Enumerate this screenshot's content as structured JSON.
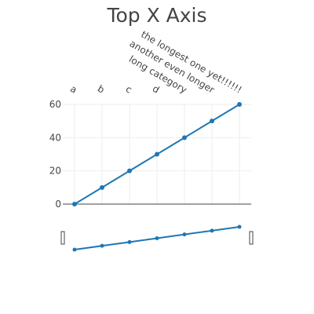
{
  "chart_data": {
    "type": "line",
    "title": "Top X Axis",
    "xlabel": "",
    "ylabel": "",
    "x_axis_position": "top",
    "categories": [
      "a",
      "b",
      "c",
      "d",
      "long category",
      "another even longer",
      "the longest one yet!!!!!!"
    ],
    "series": [
      {
        "values": [
          0,
          10,
          20,
          30,
          40,
          50,
          60
        ]
      }
    ],
    "y_ticks": [
      0,
      20,
      40,
      60
    ],
    "ylim": [
      0,
      60
    ],
    "grid": true,
    "legend": "none",
    "range_slider": true,
    "colors": {
      "series": "#1f77b4",
      "text": "#444444",
      "grid": "#eeeeee",
      "zero_line": "#444444"
    }
  }
}
